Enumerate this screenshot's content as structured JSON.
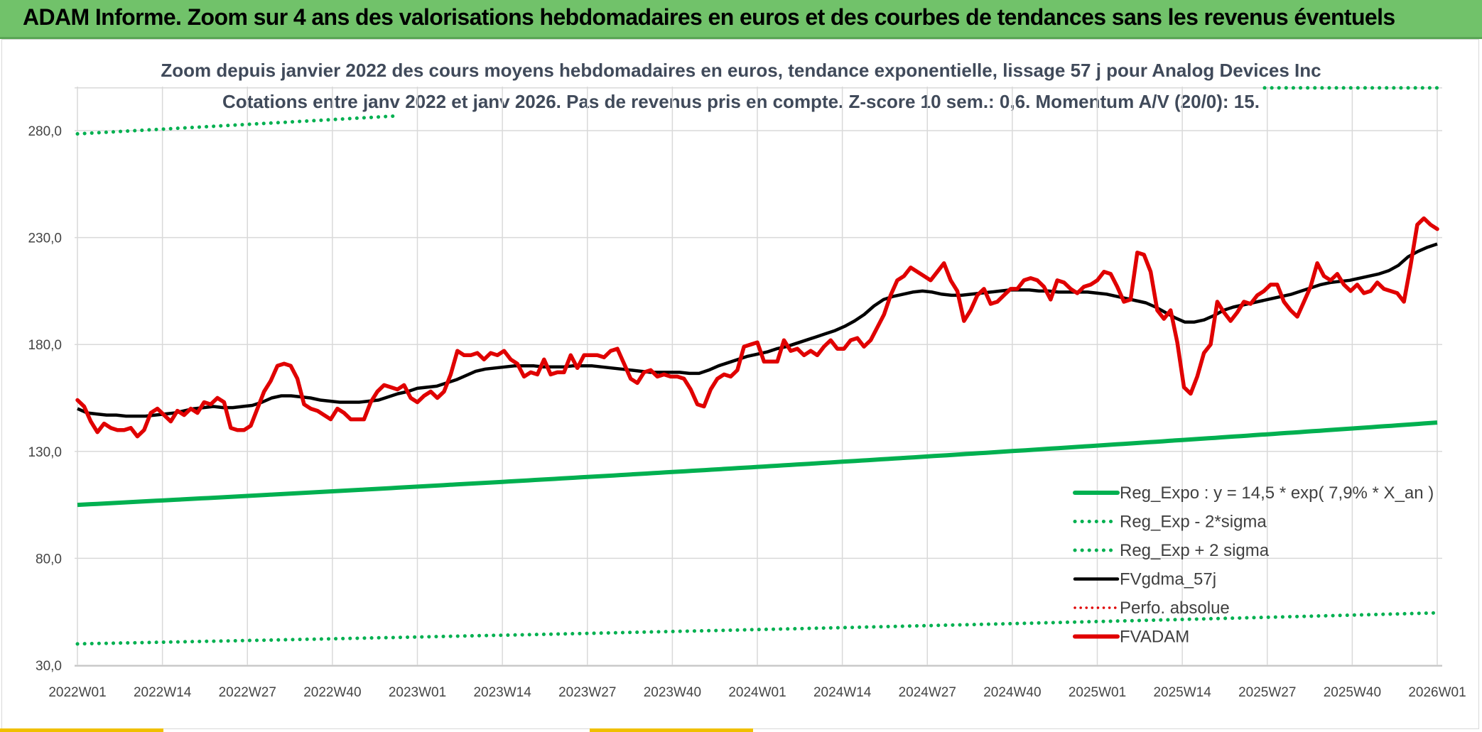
{
  "banner": {
    "title": "ADAM Informe. Zoom sur 4 ans des valorisations hebdomadaires en euros et des courbes de tendances sans les revenus éventuels"
  },
  "colors": {
    "banner": "#71c26a",
    "reg_expo": "#00b050",
    "gdma": "#000000",
    "fvadam": "#e00000",
    "perfo": "#e00000"
  },
  "chart_data": {
    "type": "line",
    "title": "Zoom depuis janvier 2022 des cours moyens hebdomadaires en euros, tendance exponentielle, lissage 57 j pour Analog Devices Inc",
    "subtitle": "Cotations entre janv 2022 et janv 2026. Pas de revenus pris en compte. Z-score 10 sem.: 0,6. Momentum A/V (20/0): 15.",
    "xlabel": "",
    "ylabel": "",
    "ylim": [
      30,
      300
    ],
    "yticks": [
      "30,0",
      "80,0",
      "130,0",
      "180,0",
      "230,0",
      "280,0"
    ],
    "xticks": [
      "2022W01",
      "2022W14",
      "2022W27",
      "2022W40",
      "2023W01",
      "2023W14",
      "2023W27",
      "2023W40",
      "2024W01",
      "2024W14",
      "2024W27",
      "2024W40",
      "2025W01",
      "2025W14",
      "2025W27",
      "2025W40",
      "2026W01"
    ],
    "grid": true,
    "legend_position": "bottom-right",
    "series": [
      {
        "name": "Reg_Expo : y = 14,5 * exp( 7,9% *  X_an )",
        "style": "solid",
        "values": [
          105.0,
          143.5
        ]
      },
      {
        "name": "Reg_Exp - 2*sigma",
        "style": "dotted",
        "values": [
          40.0,
          54.5
        ]
      },
      {
        "name": "Reg_Exp + 2 sigma",
        "style": "dotted",
        "values": [
          278.5,
          300
        ]
      },
      {
        "name": "FVgdma_57j",
        "style": "solid",
        "values": [
          150,
          148,
          147.5,
          147,
          147,
          146.5,
          146.5,
          146.5,
          147,
          147.5,
          148,
          149,
          150,
          150.5,
          151,
          150.5,
          150.5,
          151,
          151.5,
          153,
          155,
          156,
          156,
          155.5,
          155,
          154,
          153.5,
          153,
          153,
          153,
          153.5,
          154,
          155.5,
          157,
          158,
          159.5,
          160,
          160.5,
          162,
          163.5,
          165.5,
          167.5,
          168.5,
          169,
          169.5,
          170,
          170,
          170,
          169.5,
          169.5,
          169.5,
          170,
          170,
          170,
          169.5,
          169,
          168.5,
          168,
          167.5,
          167,
          167,
          167,
          167,
          166.5,
          166.5,
          168,
          170,
          171.5,
          173,
          174.5,
          175.5,
          176.5,
          178,
          179,
          180.5,
          182,
          183.5,
          185,
          186.5,
          188.5,
          191,
          194,
          198,
          201,
          202.5,
          203.5,
          204.5,
          205,
          204.5,
          203.5,
          203,
          203,
          203.5,
          204,
          204.5,
          205,
          205.5,
          205.5,
          205.5,
          205,
          205,
          204.5,
          204.5,
          204.5,
          204.5,
          204,
          203.5,
          202.5,
          201.5,
          200.5,
          199.5,
          197.5,
          195,
          192.5,
          190.5,
          190.5,
          191.5,
          193.5,
          196,
          197.5,
          198.5,
          199.5,
          200.5,
          201.5,
          202.5,
          203.5,
          205,
          206.5,
          208,
          209,
          209.5,
          210,
          211,
          212,
          213,
          214.5,
          217,
          221,
          223.5,
          225.5,
          227
        ]
      },
      {
        "name": "Perfo. absolue",
        "style": "dotted",
        "values": []
      },
      {
        "name": "FVADAM",
        "style": "solid",
        "values": [
          154,
          151,
          144,
          139,
          143,
          141,
          140,
          140,
          141,
          137,
          140,
          148,
          150,
          147,
          144,
          149,
          147,
          150,
          148,
          153,
          152,
          155,
          153,
          141,
          140,
          140,
          142,
          150,
          158,
          163,
          170,
          171,
          170,
          164,
          152,
          150,
          149,
          147,
          145,
          150,
          148,
          145,
          145,
          145,
          153,
          158,
          161,
          160,
          159,
          161,
          155,
          153,
          156,
          158,
          155,
          158,
          166,
          177,
          175,
          175,
          176,
          173,
          176,
          175,
          177,
          173,
          171,
          165,
          167,
          166,
          173,
          166,
          167,
          167,
          175,
          169,
          175,
          175,
          175,
          174,
          177,
          178,
          171,
          164,
          162,
          167,
          168,
          165,
          166,
          165,
          165,
          164,
          159,
          152,
          151,
          159,
          164,
          166,
          165,
          168,
          179,
          180,
          181,
          172,
          172,
          172,
          182,
          177,
          178,
          175,
          177,
          175,
          179,
          182,
          178,
          178,
          182,
          183,
          179,
          182,
          188,
          194,
          203,
          210,
          212,
          216,
          214,
          212,
          210,
          214,
          218,
          210,
          205,
          191,
          196,
          203,
          206,
          199,
          200,
          203,
          206,
          206,
          210,
          211,
          210,
          207,
          201,
          210,
          209,
          206,
          204,
          207,
          208,
          210,
          214,
          213,
          207,
          200,
          201,
          223,
          222,
          214,
          196,
          192,
          196,
          181,
          160,
          157,
          165,
          176,
          180,
          200,
          195,
          191,
          195,
          200,
          199,
          203,
          205,
          208,
          208,
          200,
          196,
          193,
          200,
          207,
          218,
          212,
          210,
          213,
          208,
          205,
          208,
          204,
          205,
          209,
          206,
          205,
          204,
          200,
          217,
          236,
          239,
          236,
          234
        ]
      }
    ]
  }
}
